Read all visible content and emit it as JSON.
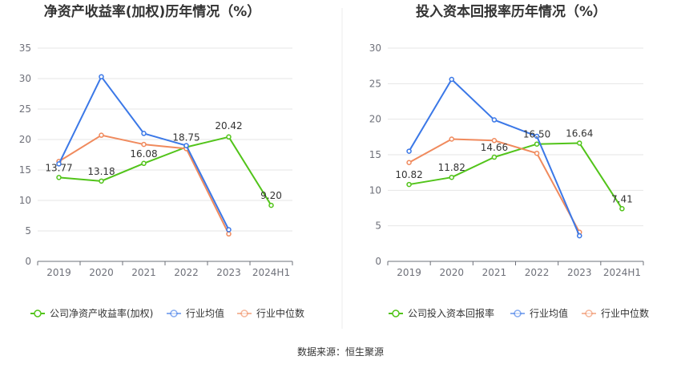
{
  "source": "数据来源：恒生聚源",
  "chart_data": [
    {
      "type": "line",
      "title": "净资产收益率(加权)历年情况（%）",
      "categories": [
        "2019",
        "2020",
        "2021",
        "2022",
        "2023",
        "2024H1"
      ],
      "ylim": [
        0,
        35
      ],
      "yticks": [
        0,
        5,
        10,
        15,
        20,
        25,
        30,
        35
      ],
      "grid": true,
      "legend_position": "bottom",
      "series": [
        {
          "name": "公司净资产收益率(加权)",
          "color": "#52c41a",
          "values": [
            13.77,
            13.18,
            16.08,
            18.75,
            20.42,
            9.2
          ],
          "labels": [
            "13.77",
            "13.18",
            "16.08",
            "18.75",
            "20.42",
            "9.20"
          ]
        },
        {
          "name": "行业均值",
          "color": "#3b78e7",
          "values": [
            16.0,
            30.3,
            21.0,
            19.0,
            5.2,
            null
          ]
        },
        {
          "name": "行业中位数",
          "color": "#f08a5d",
          "values": [
            16.4,
            20.7,
            19.2,
            18.5,
            4.5,
            null
          ]
        }
      ]
    },
    {
      "type": "line",
      "title": "投入资本回报率历年情况（%）",
      "categories": [
        "2019",
        "2020",
        "2021",
        "2022",
        "2023",
        "2024H1"
      ],
      "ylim": [
        0,
        30
      ],
      "yticks": [
        0,
        5,
        10,
        15,
        20,
        25,
        30
      ],
      "grid": true,
      "legend_position": "bottom",
      "series": [
        {
          "name": "公司投入资本回报率",
          "color": "#52c41a",
          "values": [
            10.82,
            11.82,
            14.66,
            16.5,
            16.64,
            7.41
          ],
          "labels": [
            "10.82",
            "11.82",
            "14.66",
            "16.50",
            "16.64",
            "7.41"
          ]
        },
        {
          "name": "行业均值",
          "color": "#3b78e7",
          "values": [
            15.5,
            25.6,
            19.9,
            17.6,
            3.6,
            null
          ]
        },
        {
          "name": "行业中位数",
          "color": "#f08a5d",
          "values": [
            13.9,
            17.2,
            17.0,
            15.2,
            4.1,
            null
          ]
        }
      ]
    }
  ]
}
